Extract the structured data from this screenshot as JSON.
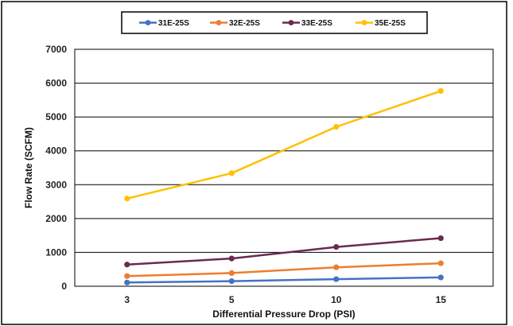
{
  "chart_data": {
    "type": "line",
    "title": "",
    "xlabel": "Differential Pressure Drop (PSI)",
    "ylabel": "Flow Rate (SCFM)",
    "categories": [
      "3",
      "5",
      "10",
      "15"
    ],
    "ylim": [
      0,
      7000
    ],
    "yticks": [
      "0",
      "1000",
      "2000",
      "3000",
      "4000",
      "5000",
      "6000",
      "7000"
    ],
    "grid": "horizontal",
    "legend_position": "top-center",
    "series": [
      {
        "name": "31E-25S",
        "color": "#4472C4",
        "values": [
          110,
          150,
          210,
          260
        ]
      },
      {
        "name": "32E-25S",
        "color": "#ED7D31",
        "values": [
          300,
          390,
          560,
          680
        ]
      },
      {
        "name": "33E-25S",
        "color": "#6B2A4E",
        "values": [
          640,
          820,
          1160,
          1420
        ]
      },
      {
        "name": "35E-25S",
        "color": "#FFC000",
        "values": [
          2590,
          3340,
          4710,
          5770
        ]
      }
    ]
  }
}
